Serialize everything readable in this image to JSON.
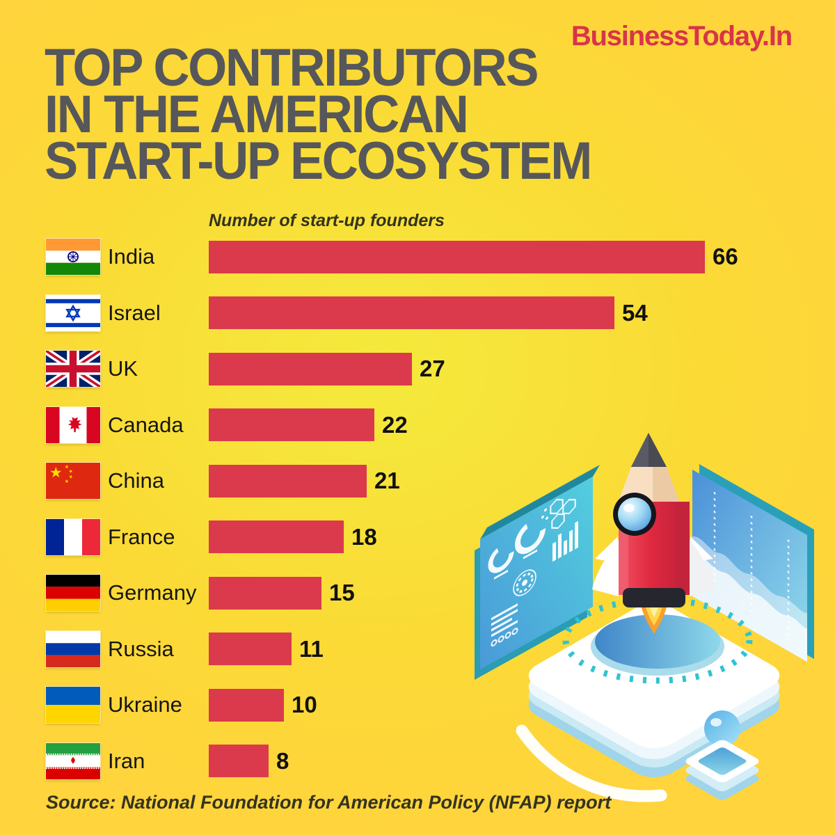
{
  "brand": {
    "logo": "BusinessToday.In",
    "color": "#d8344a"
  },
  "title": {
    "lines": [
      "TOP CONTRIBUTORS",
      "IN THE AMERICAN",
      "START-UP ECOSYSTEM"
    ]
  },
  "chart_data": {
    "type": "bar",
    "orientation": "horizontal",
    "axis_label": "Number of start-up founders",
    "categories": [
      "India",
      "Israel",
      "UK",
      "Canada",
      "China",
      "France",
      "Germany",
      "Russia",
      "Ukraine",
      "Iran"
    ],
    "values": [
      66,
      54,
      27,
      22,
      21,
      18,
      15,
      11,
      10,
      8
    ],
    "rows": [
      {
        "label": "India",
        "value": 66,
        "flag": "india"
      },
      {
        "label": "Israel",
        "value": 54,
        "flag": "israel"
      },
      {
        "label": "UK",
        "value": 27,
        "flag": "uk"
      },
      {
        "label": "Canada",
        "value": 22,
        "flag": "canada"
      },
      {
        "label": "China",
        "value": 21,
        "flag": "china"
      },
      {
        "label": "France",
        "value": 18,
        "flag": "france"
      },
      {
        "label": "Germany",
        "value": 15,
        "flag": "germany"
      },
      {
        "label": "Russia",
        "value": 11,
        "flag": "russia"
      },
      {
        "label": "Ukraine",
        "value": 10,
        "flag": "ukraine"
      },
      {
        "label": "Iran",
        "value": 8,
        "flag": "iran"
      }
    ],
    "xlim": [
      0,
      66
    ],
    "bar_color": "#db3a4d",
    "grid": false,
    "legend": "none",
    "value_labels": "end-of-bar"
  },
  "source": {
    "text": "Source: National Foundation for American Policy (NFAP) report"
  },
  "colors": {
    "background": "#ffd43b",
    "background_center": "#f4ea3c",
    "bar_red": "#db3a4d",
    "brand_red": "#d8344a",
    "title_gray": "#56575a",
    "caption_dark": "#33331f",
    "illustration_teal": "#2fc4d2",
    "illustration_blue": "#4a9fd8",
    "rocket_red": "#e02940",
    "flame_orange": "#f8a02b",
    "pencil_cream": "#f8dfc2"
  },
  "illustration": {
    "name": "startup-rocket-launch",
    "elements": [
      "pencil-rocket",
      "launch-pad",
      "analytics-screen-left",
      "analytics-screen-right",
      "idea-bulb-stamp",
      "swoosh-arrow"
    ]
  }
}
